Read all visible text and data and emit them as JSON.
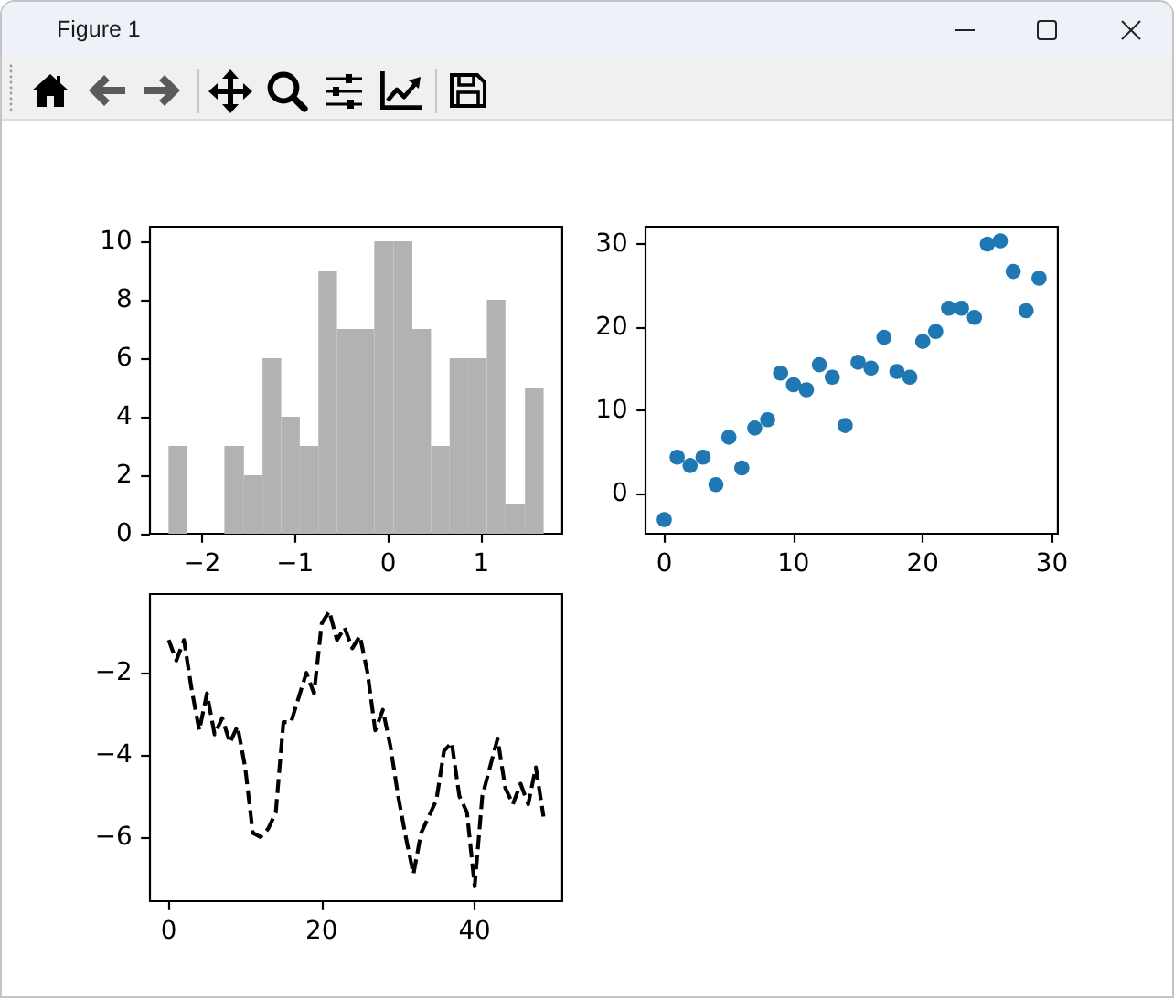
{
  "chart_data": [
    {
      "type": "other",
      "title": "Figure 1"
    },
    {
      "type": "histogram",
      "bins": [
        -2.36,
        -2.16,
        -1.76,
        -1.55,
        -1.35,
        -1.15,
        -0.95,
        -0.75,
        -0.55,
        -0.35,
        -0.15,
        0.06,
        0.26,
        0.46,
        0.66,
        0.86,
        1.06,
        1.26,
        1.47,
        1.67
      ],
      "values": [
        3,
        0,
        3,
        2,
        6,
        4,
        3,
        9,
        7,
        7,
        10,
        10,
        7,
        3,
        6,
        6,
        8,
        1,
        5
      ],
      "color": "#b2b2b2",
      "xlim": [
        -2.56,
        1.87
      ],
      "ylim": [
        0,
        10.5
      ],
      "xticks": [
        -2,
        -1,
        0,
        1
      ],
      "yticks": [
        0,
        2,
        4,
        6,
        8,
        10
      ]
    },
    {
      "type": "scatter",
      "x": [
        0,
        1,
        2,
        3,
        4,
        5,
        6,
        7,
        8,
        9,
        10,
        11,
        12,
        13,
        14,
        15,
        16,
        17,
        18,
        19,
        20,
        21,
        22,
        23,
        24,
        25,
        26,
        27,
        28,
        29
      ],
      "values": [
        -3.1,
        4.4,
        3.4,
        4.4,
        1.1,
        6.8,
        3.1,
        7.9,
        8.9,
        14.5,
        13.1,
        12.5,
        15.5,
        14.0,
        8.2,
        15.8,
        15.1,
        18.8,
        14.7,
        14.0,
        18.3,
        19.5,
        22.3,
        22.3,
        21.2,
        30.0,
        30.4,
        26.7,
        22.0,
        25.9
      ],
      "color": "#1f77b4",
      "marker": "circle",
      "xlim": [
        -1.45,
        30.45
      ],
      "ylim": [
        -4.8,
        32.1
      ],
      "xticks": [
        0,
        10,
        20,
        30
      ],
      "yticks": [
        0,
        10,
        20,
        30
      ]
    },
    {
      "type": "line",
      "x": [
        0,
        1,
        2,
        3,
        4,
        5,
        6,
        7,
        8,
        9,
        10,
        11,
        12,
        13,
        14,
        15,
        16,
        17,
        18,
        19,
        20,
        21,
        22,
        23,
        24,
        25,
        26,
        27,
        28,
        29,
        30,
        31,
        32,
        33,
        34,
        35,
        36,
        37,
        38,
        39,
        40,
        41,
        42,
        43,
        44,
        45,
        46,
        47,
        48,
        49
      ],
      "values": [
        -1.2,
        -1.7,
        -1.2,
        -2.4,
        -3.4,
        -2.5,
        -3.5,
        -3.1,
        -3.7,
        -3.3,
        -4.3,
        -5.9,
        -6.0,
        -5.8,
        -5.4,
        -3.2,
        -3.2,
        -2.6,
        -2.0,
        -2.5,
        -0.8,
        -0.5,
        -1.2,
        -0.9,
        -1.4,
        -1.1,
        -2.0,
        -3.4,
        -2.9,
        -3.8,
        -5.0,
        -6.0,
        -6.9,
        -5.9,
        -5.5,
        -5.1,
        -3.9,
        -3.7,
        -5.0,
        -5.4,
        -7.2,
        -5.0,
        -4.3,
        -3.6,
        -4.8,
        -5.2,
        -4.7,
        -5.2,
        -4.3,
        -5.5
      ],
      "color": "#000000",
      "line_style": "dashed",
      "marker": "none",
      "xlim": [
        -2.45,
        51.45
      ],
      "ylim": [
        -7.56,
        -0.08
      ],
      "xticks": [
        0,
        20,
        40
      ],
      "yticks": [
        -6,
        -4,
        -2
      ]
    }
  ]
}
